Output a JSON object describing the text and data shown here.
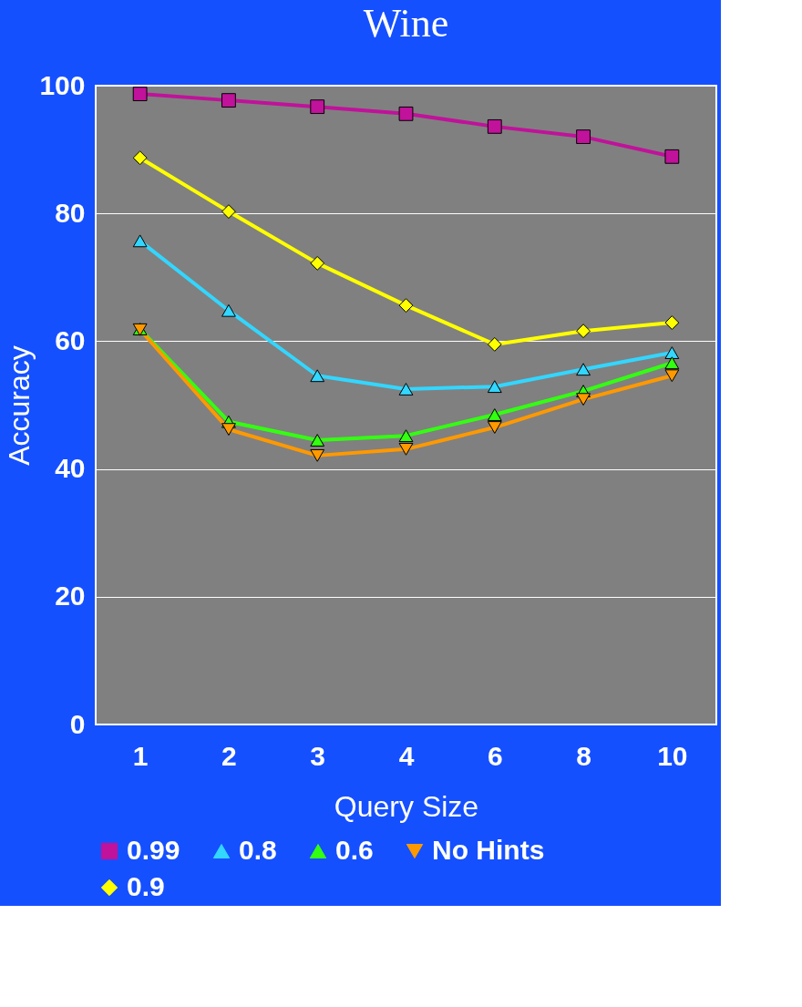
{
  "chart_data": {
    "type": "line",
    "title": "Wine",
    "xlabel": "Query Size",
    "ylabel": "Accuracy",
    "categories": [
      "1",
      "2",
      "3",
      "4",
      "6",
      "8",
      "10"
    ],
    "series": [
      {
        "name": "0.99",
        "color": "#c0129a",
        "marker": "square",
        "values": [
          98.7,
          97.7,
          96.7,
          95.6,
          93.6,
          92.0,
          88.9
        ]
      },
      {
        "name": "0.8",
        "color": "#33d6ff",
        "marker": "triangle",
        "values": [
          75.7,
          64.8,
          54.6,
          52.5,
          52.9,
          55.6,
          58.2
        ]
      },
      {
        "name": "0.6",
        "color": "#33ff11",
        "marker": "triangle",
        "values": [
          61.9,
          47.4,
          44.5,
          45.2,
          48.5,
          52.2,
          56.6
        ]
      },
      {
        "name": "No Hints",
        "color": "#ff9900",
        "marker": "triangle-down",
        "values": [
          61.8,
          46.2,
          42.1,
          43.1,
          46.5,
          50.9,
          54.6
        ]
      },
      {
        "name": "0.9",
        "color": "#ffff00",
        "marker": "diamond",
        "values": [
          88.7,
          80.3,
          72.2,
          65.6,
          59.5,
          61.6,
          62.9
        ]
      }
    ],
    "ylim": [
      0,
      100
    ],
    "yticks": [
      0,
      20,
      40,
      60,
      80,
      100
    ],
    "grid": "y",
    "legend": "bottom"
  }
}
